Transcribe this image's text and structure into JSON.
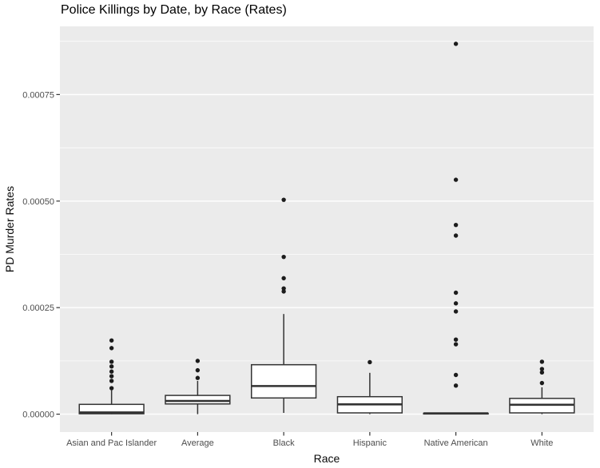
{
  "colors": {
    "panel_bg": "#ebebeb",
    "grid_major": "#ffffff",
    "grid_minor": "#ffffff",
    "box_fill": "#ffffff",
    "box_stroke": "#333333",
    "point": "#1c1c1c",
    "tick_mark": "#333333",
    "tick_label": "#4d4d4d",
    "title_color": "#000000"
  },
  "chart_data": {
    "type": "boxplot",
    "title": "Police Killings by Date, by Race (Rates)",
    "xlabel": "Race",
    "ylabel": "PD Murder Rates",
    "ylim": [
      -4.2e-05,
      0.00091
    ],
    "grid": true,
    "y_ticks": [
      {
        "value": 0.0,
        "label": "0.00000"
      },
      {
        "value": 0.00025,
        "label": "0.00025"
      },
      {
        "value": 0.0005,
        "label": "0.00050"
      },
      {
        "value": 0.00075,
        "label": "0.00075"
      }
    ],
    "y_minor": [
      0.000125,
      0.000375,
      0.000625,
      0.000875
    ],
    "categories": [
      "Asian and Pac Islander",
      "Average",
      "Black",
      "Hispanic",
      "Native American",
      "White"
    ],
    "series": [
      {
        "category": "Asian and Pac Islander",
        "whisker_low": 0.0,
        "q1": 1e-06,
        "median": 4e-06,
        "q3": 2.3e-05,
        "whisker_high": 5.6e-05,
        "outliers": [
          6.1e-05,
          7.8e-05,
          8.9e-05,
          0.0001,
          0.000112,
          0.000123,
          0.000155,
          0.000173
        ]
      },
      {
        "category": "Average",
        "whisker_low": 0.0,
        "q1": 2.4e-05,
        "median": 3.1e-05,
        "q3": 4.4e-05,
        "whisker_high": 7.8e-05,
        "outliers": [
          8.5e-05,
          0.000103,
          0.000125
        ]
      },
      {
        "category": "Black",
        "whisker_low": 3e-06,
        "q1": 3.8e-05,
        "median": 6.6e-05,
        "q3": 0.000116,
        "whisker_high": 0.000235,
        "outliers": [
          0.000288,
          0.000295,
          0.000319,
          0.000369,
          0.000503
        ]
      },
      {
        "category": "Hispanic",
        "whisker_low": 0.0,
        "q1": 3e-06,
        "median": 2.3e-05,
        "q3": 4.1e-05,
        "whisker_high": 9.7e-05,
        "outliers": [
          0.000122
        ]
      },
      {
        "category": "Native American",
        "whisker_low": 2e-06,
        "q1": 2e-06,
        "median": 2e-06,
        "q3": 2e-06,
        "whisker_high": 2e-06,
        "outliers": [
          6.7e-05,
          9.2e-05,
          0.000164,
          0.000175,
          0.000241,
          0.00026,
          0.000285,
          0.000419,
          0.000444,
          0.00055,
          0.000869
        ]
      },
      {
        "category": "White",
        "whisker_low": 0.0,
        "q1": 3e-06,
        "median": 2.2e-05,
        "q3": 3.7e-05,
        "whisker_high": 6.3e-05,
        "outliers": [
          7.3e-05,
          9.8e-05,
          0.000106,
          0.000123
        ]
      }
    ]
  }
}
